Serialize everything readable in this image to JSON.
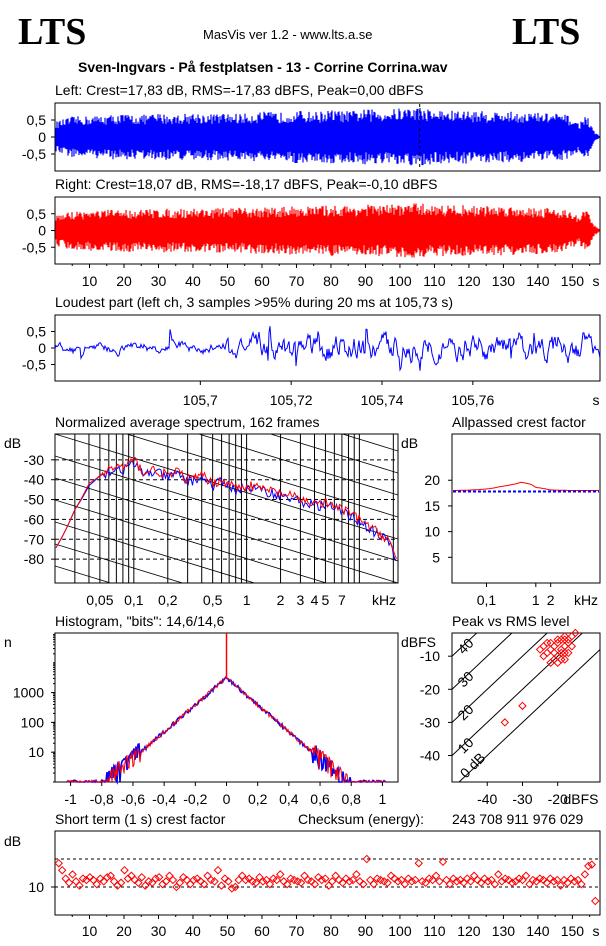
{
  "header": {
    "logo_left": "LTS",
    "logo_right": "LTS",
    "app_title": "MasVis ver 1.2 - www.lts.a.se",
    "file_title": "Sven-Ingvars - På festplatsen - 13 - Corrine Corrina.wav"
  },
  "colors": {
    "left": "#0000ff",
    "right": "#ff0000",
    "grid": "#000000"
  },
  "chart_data": [
    {
      "id": "left",
      "type": "area",
      "title": "Left: Crest=17,83 dB, RMS=-17,83 dBFS, Peak=0,00 dBFS",
      "ytick_labels": [
        "0,5",
        "0",
        "-0,5"
      ],
      "yticks": [
        0.5,
        0,
        -0.5
      ],
      "ylim": [
        -1,
        1
      ],
      "xlim": [
        0,
        158
      ],
      "marker_x": 105.73,
      "amplitude_envelope": {
        "t": [
          0,
          5,
          10,
          15,
          20,
          25,
          30,
          35,
          40,
          45,
          50,
          55,
          60,
          65,
          70,
          75,
          80,
          85,
          90,
          95,
          100,
          105,
          110,
          115,
          120,
          125,
          130,
          135,
          140,
          145,
          148,
          150,
          152,
          154,
          156,
          158
        ],
        "peak": [
          0.45,
          0.6,
          0.62,
          0.65,
          0.68,
          0.65,
          0.7,
          0.66,
          0.72,
          0.68,
          0.7,
          0.69,
          0.75,
          0.72,
          0.78,
          0.74,
          0.8,
          0.76,
          0.82,
          0.8,
          0.85,
          0.9,
          0.8,
          0.78,
          0.78,
          0.76,
          0.75,
          0.74,
          0.72,
          0.7,
          0.66,
          0.55,
          0.4,
          0.7,
          0.2,
          0.02
        ]
      }
    },
    {
      "id": "right",
      "type": "area",
      "title": "Right: Crest=18,07 dB, RMS=-18,17 dBFS, Peak=-0,10 dBFS",
      "ytick_labels": [
        "0,5",
        "0",
        "-0,5"
      ],
      "yticks": [
        0.5,
        0,
        -0.5
      ],
      "ylim": [
        -1,
        1
      ],
      "xlim": [
        0,
        158
      ],
      "xtick_labels": [
        "10",
        "20",
        "30",
        "40",
        "50",
        "60",
        "70",
        "80",
        "90",
        "100",
        "110",
        "120",
        "130",
        "140",
        "150",
        "s"
      ],
      "xticks": [
        10,
        20,
        30,
        40,
        50,
        60,
        70,
        80,
        90,
        100,
        110,
        120,
        130,
        140,
        150
      ],
      "amplitude_envelope": {
        "t": [
          0,
          5,
          10,
          15,
          20,
          25,
          30,
          35,
          40,
          45,
          50,
          55,
          60,
          65,
          70,
          75,
          80,
          85,
          90,
          95,
          100,
          105,
          110,
          115,
          120,
          125,
          130,
          135,
          140,
          145,
          148,
          150,
          152,
          154,
          156,
          158
        ],
        "peak": [
          0.45,
          0.58,
          0.6,
          0.62,
          0.64,
          0.63,
          0.66,
          0.64,
          0.68,
          0.66,
          0.68,
          0.67,
          0.7,
          0.7,
          0.74,
          0.72,
          0.76,
          0.74,
          0.78,
          0.76,
          0.8,
          0.82,
          0.78,
          0.76,
          0.76,
          0.74,
          0.74,
          0.72,
          0.7,
          0.68,
          0.64,
          0.52,
          0.4,
          0.7,
          0.2,
          0.02
        ]
      }
    },
    {
      "id": "loudest",
      "type": "line",
      "title": "Loudest part (left  ch, 3 samples >95% during 20 ms at 105,73 s)",
      "ytick_labels": [
        "0,5",
        "0",
        "-0,5"
      ],
      "yticks": [
        0.5,
        0,
        -0.5
      ],
      "ylim": [
        -1,
        1
      ],
      "xlim": [
        105.668,
        105.788
      ],
      "xtick_labels": [
        "105,7",
        "105,72",
        "105,74",
        "105,76",
        "s"
      ],
      "xticks": [
        105.7,
        105.72,
        105.74,
        105.76
      ]
    },
    {
      "id": "spectrum",
      "type": "line",
      "title": "Normalized average spectrum, 162 frames",
      "ylabel": "dB",
      "xlabel": "kHz",
      "ytick_labels": [
        "-30",
        "-40",
        "-50",
        "-60",
        "-70",
        "-80"
      ],
      "yticks": [
        -30,
        -40,
        -50,
        -60,
        -70,
        -80
      ],
      "ylim": [
        -92,
        -17
      ],
      "xtick_labels": [
        "0,05",
        "0,1",
        "0,2",
        "0,5",
        "1",
        "2",
        "3",
        "4",
        "5",
        "7"
      ],
      "xticks": [
        0.05,
        0.1,
        0.2,
        0.5,
        1,
        2,
        3,
        4,
        5,
        7
      ],
      "xlim": [
        0.02,
        22
      ],
      "x": [
        0.02,
        0.03,
        0.04,
        0.05,
        0.06,
        0.07,
        0.08,
        0.1,
        0.12,
        0.15,
        0.2,
        0.25,
        0.3,
        0.4,
        0.5,
        0.6,
        0.8,
        1,
        1.5,
        2,
        3,
        4,
        5,
        7,
        10,
        14,
        18,
        22
      ],
      "series": [
        {
          "color": "#ff0000",
          "values": [
            -75,
            -55,
            -42,
            -38,
            -35,
            -33,
            -34,
            -30,
            -36,
            -35,
            -38,
            -36,
            -40,
            -38,
            -42,
            -40,
            -44,
            -43,
            -45,
            -47,
            -50,
            -52,
            -52,
            -55,
            -60,
            -66,
            -70,
            -82
          ]
        },
        {
          "color": "#0000ff",
          "values": [
            -75,
            -55,
            -43,
            -38,
            -36,
            -34,
            -35,
            -32,
            -37,
            -36,
            -39,
            -37,
            -41,
            -39,
            -43,
            -41,
            -45,
            -44,
            -46,
            -48,
            -51,
            -53,
            -53,
            -56,
            -61,
            -67,
            -71,
            -83
          ]
        }
      ]
    },
    {
      "id": "crest_vs_freq",
      "type": "line",
      "title": "Allpassed crest factor",
      "ylabel": "dB",
      "xlabel": "kHz",
      "ytick_labels": [
        "20",
        "15",
        "10",
        "5"
      ],
      "yticks": [
        20,
        15,
        10,
        5
      ],
      "ylim": [
        0,
        29
      ],
      "xtick_labels": [
        "0,1",
        "1",
        "2"
      ],
      "xticks": [
        0.1,
        1,
        2
      ],
      "xlim": [
        0.02,
        20
      ],
      "x": [
        0.02,
        0.05,
        0.1,
        0.2,
        0.5,
        0.8,
        1,
        2,
        5,
        10,
        20
      ],
      "series": [
        {
          "color": "#ff0000",
          "values": [
            18,
            18.1,
            18.3,
            18.8,
            19.6,
            19.2,
            18.6,
            18.1,
            18.0,
            18.0,
            18.0
          ]
        },
        {
          "color": "#0000ff",
          "dashed": true,
          "values": [
            17.8,
            17.8,
            17.8,
            17.8,
            17.8,
            17.8,
            17.8,
            17.8,
            17.8,
            17.8,
            17.8
          ]
        }
      ]
    },
    {
      "id": "histogram",
      "type": "line",
      "title": "Histogram, \"bits\": 14,6/14,6",
      "ylabel": "n",
      "ytick_labels": [
        "1000",
        "100",
        "10"
      ],
      "yticks": [
        1000,
        100,
        10
      ],
      "ylim": [
        1,
        100000
      ],
      "xtick_labels": [
        "-1",
        "-0,8",
        "-0,6",
        "-0,4",
        "-0,2",
        "0",
        "0,2",
        "0,4",
        "0,6",
        "0,8",
        "1"
      ],
      "xticks": [
        -1,
        -0.8,
        -0.6,
        -0.4,
        -0.2,
        0,
        0.2,
        0.4,
        0.6,
        0.8,
        1
      ],
      "xlim": [
        -1.1,
        1.1
      ],
      "peak_at_zero": 3200,
      "edge_at_0_8": 1
    },
    {
      "id": "peak_vs_rms",
      "type": "scatter",
      "title": "Peak vs RMS level",
      "ylabel": "dBFS",
      "xlabel": "dBFS",
      "ytick_labels": [
        "-10",
        "-20",
        "-30",
        "-40"
      ],
      "yticks": [
        -10,
        -20,
        -30,
        -40
      ],
      "ylim": [
        -48,
        -3
      ],
      "xtick_labels": [
        "-40",
        "-30",
        "-20"
      ],
      "xticks": [
        -40,
        -30,
        -20
      ],
      "xlim": [
        -50,
        -8
      ],
      "diagonal_labels": [
        "40",
        "30",
        "20",
        "10",
        "0 dB"
      ],
      "points": [
        [
          -25,
          -8
        ],
        [
          -24,
          -7
        ],
        [
          -23,
          -9
        ],
        [
          -22,
          -6
        ],
        [
          -21,
          -7
        ],
        [
          -20,
          -5
        ],
        [
          -19,
          -8
        ],
        [
          -18,
          -4
        ],
        [
          -17,
          -6
        ],
        [
          -18,
          -9
        ],
        [
          -20,
          -10
        ],
        [
          -19,
          -11
        ],
        [
          -21,
          -9
        ],
        [
          -22,
          -12
        ],
        [
          -17,
          -5
        ],
        [
          -16,
          -4
        ],
        [
          -18,
          -7
        ],
        [
          -19,
          -5
        ],
        [
          -20,
          -6
        ],
        [
          -23,
          -6
        ],
        [
          -24,
          -10
        ],
        [
          -16,
          -7
        ],
        [
          -17,
          -9
        ],
        [
          -18,
          -11
        ],
        [
          -15,
          -3
        ],
        [
          -30,
          -25
        ],
        [
          -35,
          -30
        ],
        [
          -22,
          -8
        ],
        [
          -21,
          -11
        ],
        [
          -19,
          -9
        ],
        [
          -20,
          -12
        ],
        [
          -18,
          -5
        ]
      ]
    },
    {
      "id": "short_term_crest",
      "type": "scatter",
      "title": "Short term (1 s) crest factor",
      "checksum_label": "Checksum (energy):",
      "checksum_value": "243 708 911 976 029",
      "ylabel": "dB",
      "ytick_labels": [
        "10"
      ],
      "yticks": [
        10
      ],
      "ylim": [
        0,
        30
      ],
      "dashed_levels": [
        20,
        10
      ],
      "xlim": [
        0,
        158
      ],
      "xtick_labels": [
        "10",
        "20",
        "30",
        "40",
        "50",
        "60",
        "70",
        "80",
        "90",
        "100",
        "110",
        "120",
        "130",
        "140",
        "150",
        "s"
      ],
      "xticks": [
        10,
        20,
        30,
        40,
        50,
        60,
        70,
        80,
        90,
        100,
        110,
        120,
        130,
        140,
        150
      ],
      "values": [
        18.5,
        16.0,
        13.0,
        11.5,
        14.5,
        12.0,
        10.5,
        13.0,
        12.5,
        13.5,
        12.5,
        11.0,
        13.0,
        12.0,
        13.5,
        14.0,
        12.0,
        10.5,
        11.5,
        16.0,
        13.0,
        14.0,
        12.5,
        11.5,
        13.5,
        10.5,
        12.0,
        11.5,
        13.0,
        13.5,
        11.0,
        12.0,
        14.0,
        12.5,
        10.0,
        11.5,
        13.5,
        12.5,
        11.0,
        12.5,
        13.0,
        12.0,
        11.0,
        14.0,
        12.5,
        12.0,
        16.0,
        10.5,
        13.0,
        12.0,
        9.5,
        10.0,
        12.5,
        14.0,
        12.5,
        13.0,
        12.0,
        11.5,
        13.5,
        12.0,
        12.5,
        11.0,
        13.0,
        12.5,
        14.5,
        12.0,
        11.0,
        13.0,
        12.5,
        12.0,
        11.5,
        14.0,
        12.5,
        12.0,
        11.0,
        13.5,
        12.5,
        13.0,
        10.5,
        12.0,
        14.0,
        12.5,
        11.5,
        13.0,
        12.0,
        12.5,
        14.5,
        12.0,
        11.0,
        20.0,
        12.5,
        11.0,
        13.0,
        12.5,
        12.0,
        11.5,
        14.0,
        13.0,
        12.0,
        12.5,
        11.0,
        13.0,
        12.0,
        12.5,
        18.5,
        12.0,
        11.5,
        13.0,
        12.5,
        14.0,
        12.0,
        19.0,
        12.5,
        11.0,
        13.0,
        12.0,
        12.5,
        11.5,
        13.0,
        12.0,
        14.0,
        12.5,
        11.5,
        13.0,
        12.0,
        12.5,
        11.0,
        14.5,
        12.0,
        13.0,
        12.5,
        11.5,
        12.0,
        13.0,
        12.5,
        14.0,
        11.0,
        12.5,
        12.0,
        13.0,
        12.5,
        11.5,
        13.0,
        12.0,
        12.5,
        10.5,
        12.5,
        11.5,
        13.0,
        12.0,
        12.5,
        11.0,
        14.5,
        17.5,
        18.0,
        5.0
      ]
    }
  ]
}
